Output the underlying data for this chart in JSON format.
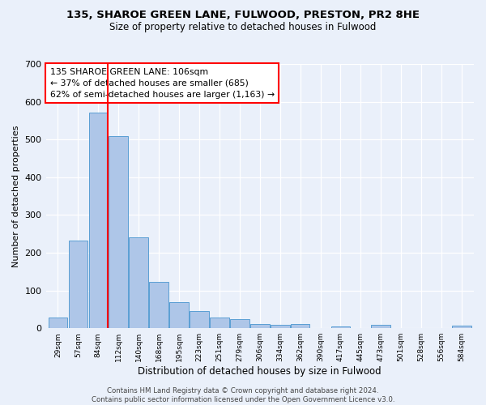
{
  "title1": "135, SHAROE GREEN LANE, FULWOOD, PRESTON, PR2 8HE",
  "title2": "Size of property relative to detached houses in Fulwood",
  "xlabel": "Distribution of detached houses by size in Fulwood",
  "ylabel": "Number of detached properties",
  "footnote": "Contains HM Land Registry data © Crown copyright and database right 2024.\nContains public sector information licensed under the Open Government Licence v3.0.",
  "bin_labels": [
    "29sqm",
    "57sqm",
    "84sqm",
    "112sqm",
    "140sqm",
    "168sqm",
    "195sqm",
    "223sqm",
    "251sqm",
    "279sqm",
    "306sqm",
    "334sqm",
    "362sqm",
    "390sqm",
    "417sqm",
    "445sqm",
    "473sqm",
    "501sqm",
    "528sqm",
    "556sqm",
    "584sqm"
  ],
  "bar_values": [
    28,
    232,
    572,
    508,
    240,
    123,
    70,
    46,
    28,
    24,
    12,
    10,
    11,
    0,
    5,
    0,
    8,
    0,
    0,
    0,
    7
  ],
  "bar_color": "#aec6e8",
  "bar_edge_color": "#5a9fd4",
  "red_line_label": "135 SHAROE GREEN LANE: 106sqm",
  "annotation_line2": "← 37% of detached houses are smaller (685)",
  "annotation_line3": "62% of semi-detached houses are larger (1,163) →",
  "ylim": [
    0,
    700
  ],
  "yticks": [
    0,
    100,
    200,
    300,
    400,
    500,
    600,
    700
  ],
  "bg_color": "#eaf0fa",
  "plot_bg_color": "#eaf0fa"
}
